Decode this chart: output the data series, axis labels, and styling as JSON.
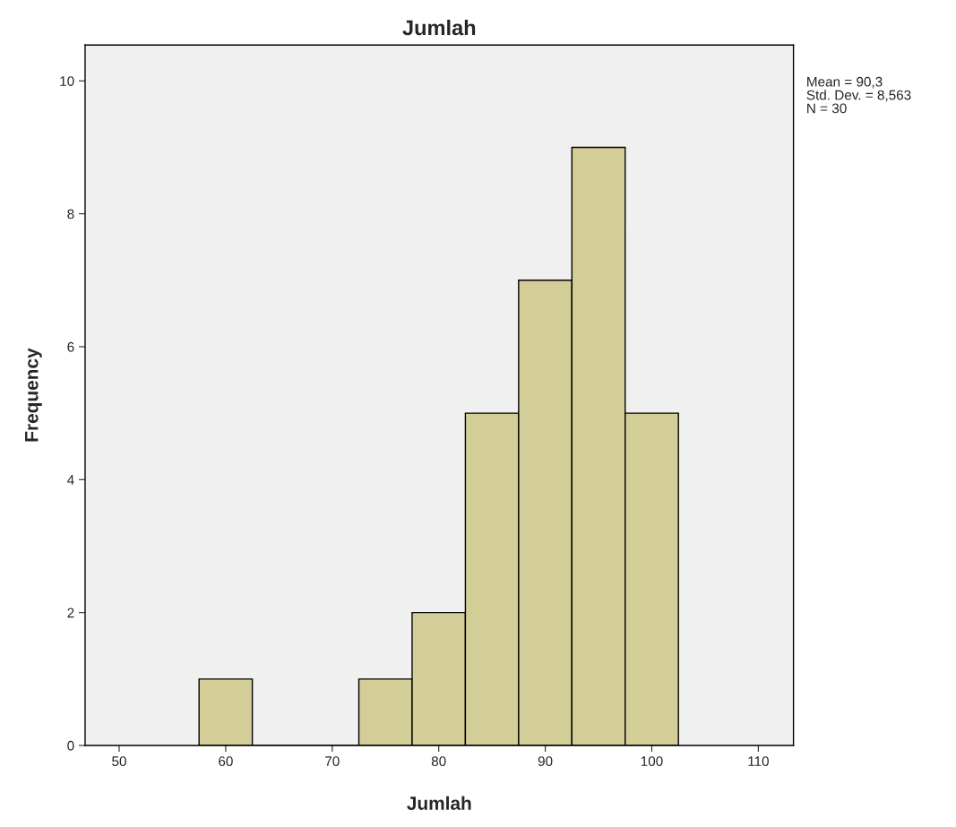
{
  "chart_data": {
    "type": "histogram",
    "title": "Jumlah",
    "xlabel": "Jumlah",
    "ylabel": "Frequency",
    "bins": [
      57.5,
      62.5,
      67.5,
      72.5,
      77.5,
      82.5,
      87.5,
      92.5,
      97.5,
      102.5
    ],
    "values": [
      1,
      0,
      0,
      1,
      2,
      5,
      7,
      9,
      5
    ],
    "color": "#d3ce97",
    "xlim": [
      46.8,
      113.3
    ],
    "xticks": [
      50,
      60,
      70,
      80,
      90,
      100,
      110
    ],
    "ylim": [
      0,
      10.54
    ],
    "yticks": [
      0,
      2,
      4,
      6,
      8,
      10
    ],
    "grid": false,
    "annotations": [
      "Mean = 90,3",
      "Std. Dev. = 8,563",
      "N = 30"
    ]
  }
}
